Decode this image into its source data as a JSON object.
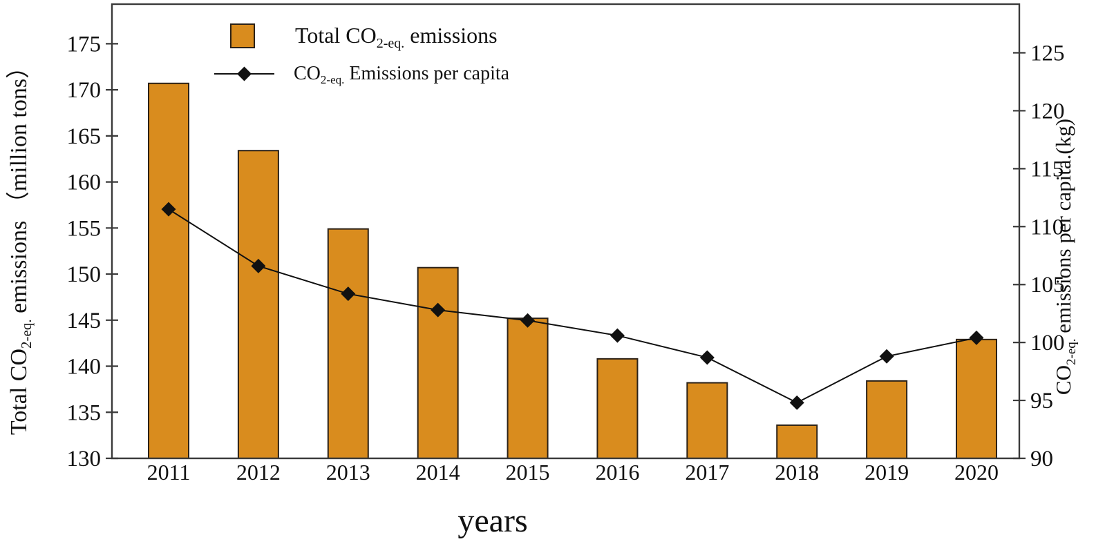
{
  "figure": {
    "x_title": "years",
    "left_axis_title": {
      "pre": "Total CO",
      "sub": "2-eq.",
      "post": " emissions （million tons）"
    },
    "right_axis_title": {
      "pre": "CO",
      "sub": "2-eq.",
      "post": " emissions per capita.(kg)"
    },
    "legend": [
      {
        "marker": "bar-swatch",
        "label": {
          "pre": "Total CO",
          "sub": "2-eq.",
          "post": " emissions"
        }
      },
      {
        "marker": "line-diamond",
        "label": {
          "pre": "CO",
          "sub": "2-eq.",
          "post": " Emissions per capita"
        }
      }
    ],
    "colors": {
      "bar_fill": "#D98C1E",
      "bar_edge": "#2B2117",
      "line": "#111111",
      "frame": "#3a3a3a",
      "text": "#111111"
    }
  },
  "chart_data": {
    "type": "bar+line-dual-axis",
    "categories": [
      "2011",
      "2012",
      "2013",
      "2014",
      "2015",
      "2016",
      "2017",
      "2018",
      "2019",
      "2020"
    ],
    "series": [
      {
        "name": "Total CO2-eq. emissions",
        "type": "bar",
        "yaxis": "left",
        "unit": "million tons",
        "values": [
          170.7,
          163.4,
          154.9,
          150.7,
          145.2,
          140.8,
          138.2,
          133.6,
          138.4,
          142.9
        ]
      },
      {
        "name": "CO2-eq. Emissions per capita",
        "type": "line",
        "marker": "diamond",
        "yaxis": "right",
        "unit": "kg",
        "values": [
          111.5,
          106.6,
          104.2,
          102.8,
          101.9,
          100.6,
          98.7,
          94.8,
          98.8,
          100.4
        ]
      }
    ],
    "title": "",
    "xlabel": "years",
    "ylabel_left": "Total CO2-eq. emissions （million tons）",
    "ylabel_right": "CO2-eq. emissions per capita.(kg)",
    "left_ticks": [
      130,
      135,
      140,
      145,
      150,
      155,
      160,
      165,
      170,
      175
    ],
    "right_ticks": [
      90,
      95,
      100,
      105,
      110,
      115,
      120,
      125
    ],
    "ylim_left": [
      130,
      179.3
    ],
    "ylim_right": [
      90,
      129.2
    ],
    "grid": false,
    "legend_position": "upper-left-inside"
  }
}
